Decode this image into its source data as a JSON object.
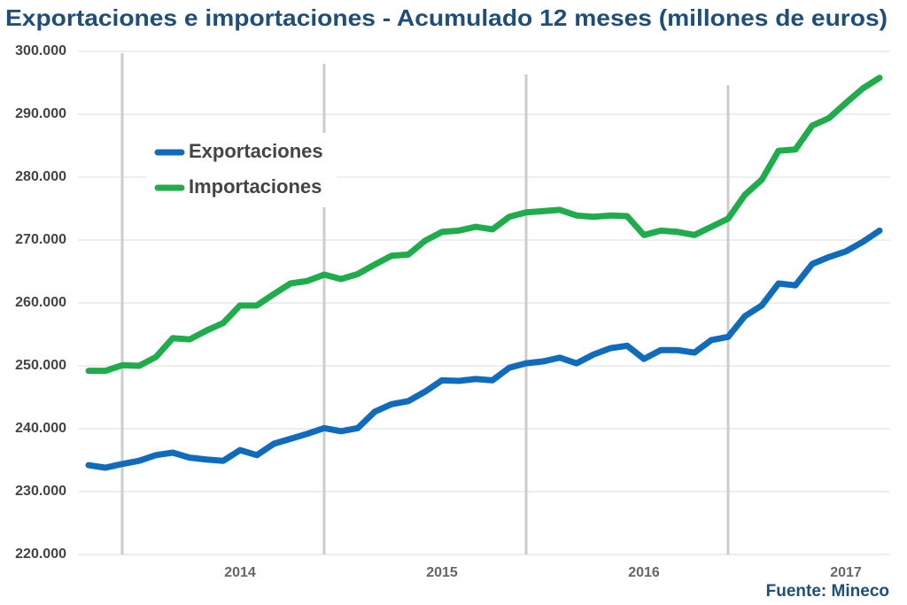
{
  "chart_data": {
    "type": "line",
    "title": "Exportaciones e importaciones - Acumulado 12 meses (millones de euros)",
    "source": "Fuente: Mineco",
    "categories": [
      null,
      null,
      null,
      null,
      null,
      null,
      null,
      null,
      null,
      "2014",
      null,
      null,
      null,
      null,
      null,
      null,
      null,
      null,
      null,
      null,
      null,
      "2015",
      null,
      null,
      null,
      null,
      null,
      null,
      null,
      null,
      null,
      null,
      null,
      "2016",
      null,
      null,
      null,
      null,
      null,
      null,
      null,
      null,
      null,
      null,
      null,
      "2017",
      null,
      null
    ],
    "series": [
      {
        "name": "Exportaciones",
        "color": "#0f6cbd",
        "values": [
          234200,
          233800,
          234400,
          234900,
          235800,
          236200,
          235400,
          235100,
          234900,
          236600,
          235800,
          237600,
          238400,
          239200,
          240100,
          239600,
          240100,
          242700,
          243900,
          244400,
          245900,
          247700,
          247600,
          247900,
          247700,
          249700,
          250400,
          250700,
          251300,
          250400,
          251800,
          252800,
          253200,
          251100,
          252500,
          252500,
          252100,
          254100,
          254600,
          257900,
          259600,
          263100,
          262800,
          266200,
          267300,
          268200,
          269700,
          271500
        ]
      },
      {
        "name": "Importaciones",
        "color": "#1fad4b",
        "values": [
          249200,
          249200,
          250100,
          250000,
          251400,
          254400,
          254200,
          255600,
          256800,
          259600,
          259600,
          261400,
          263100,
          263500,
          264500,
          263800,
          264600,
          266100,
          267500,
          267700,
          269900,
          271300,
          271500,
          272100,
          271700,
          273700,
          274400,
          274600,
          274800,
          273900,
          273700,
          273900,
          273800,
          270800,
          271500,
          271300,
          270800,
          272100,
          273400,
          277200,
          279600,
          284200,
          284400,
          288200,
          289400,
          291800,
          294100,
          295800
        ]
      }
    ],
    "ylim": [
      220000,
      300000
    ],
    "yticks": [
      {
        "value": 220000,
        "label": "220.000"
      },
      {
        "value": 230000,
        "label": "230.000"
      },
      {
        "value": 240000,
        "label": "240.000"
      },
      {
        "value": 250000,
        "label": "250.000"
      },
      {
        "value": 260000,
        "label": "260.000"
      },
      {
        "value": 270000,
        "label": "270.000"
      },
      {
        "value": 280000,
        "label": "280.000"
      },
      {
        "value": 290000,
        "label": "290.000"
      },
      {
        "value": 300000,
        "label": "300.000"
      }
    ],
    "grid": true,
    "legend": "upper left"
  }
}
